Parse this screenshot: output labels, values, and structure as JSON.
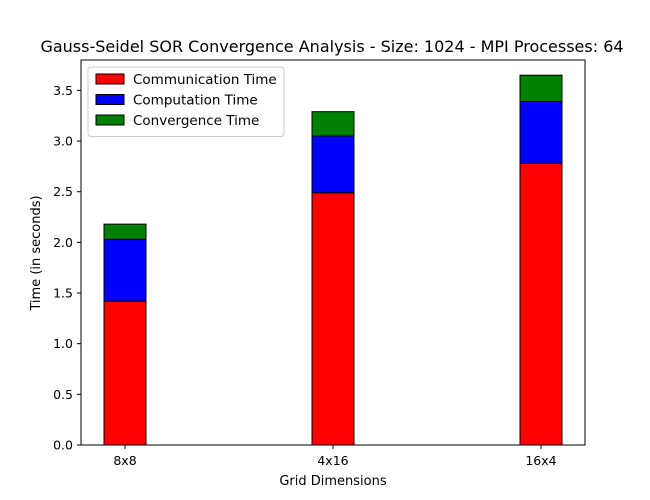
{
  "chart_data": {
    "type": "bar",
    "stacked": true,
    "title": "Gauss-Seidel SOR Convergence Analysis - Size: 1024 - MPI Processes: 64",
    "xlabel": "Grid Dimensions",
    "ylabel": "Time (in seconds)",
    "categories": [
      "8x8",
      "4x16",
      "16x4"
    ],
    "series": [
      {
        "name": "Communication Time",
        "color": "#ff0000",
        "values": [
          1.42,
          2.49,
          2.78
        ]
      },
      {
        "name": "Computation Time",
        "color": "#0000ff",
        "values": [
          0.61,
          0.56,
          0.61
        ]
      },
      {
        "name": "Convergence Time",
        "color": "#008000",
        "values": [
          0.15,
          0.24,
          0.26
        ]
      }
    ],
    "ylim": [
      0,
      3.8
    ],
    "yticks": [
      "0.0",
      "0.5",
      "1.0",
      "1.5",
      "2.0",
      "2.5",
      "3.0",
      "3.5"
    ],
    "grid": false,
    "legend_position": "top-left"
  }
}
